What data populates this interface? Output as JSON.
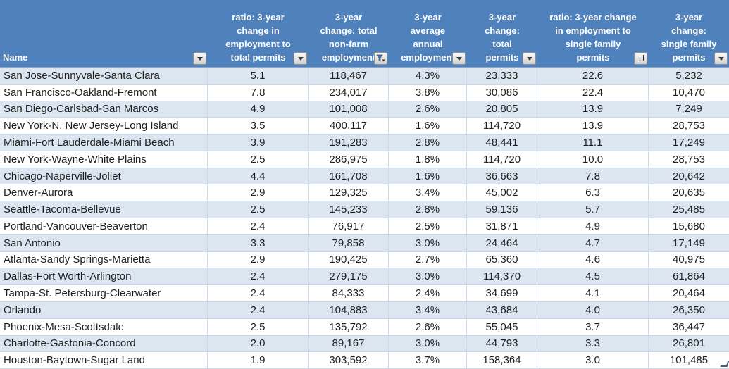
{
  "table": {
    "columns": [
      {
        "name": "name",
        "label": "Name",
        "lines": [
          "Name"
        ],
        "filter": "dropdown"
      },
      {
        "name": "ratio-employment-to-total-permits",
        "label": "ratio: 3-year change in employment to total permits",
        "lines": [
          "ratio: 3-year",
          "change in",
          "employment to",
          "total permits"
        ],
        "filter": "dropdown"
      },
      {
        "name": "change-total-nonfarm-employment",
        "label": "3-year change: total non-farm employment",
        "lines": [
          "3-year",
          "change: total",
          "non-farm",
          "employment"
        ],
        "filter": "filtered"
      },
      {
        "name": "average-annual-employment",
        "label": "3-year average annual employment",
        "lines": [
          "3-year",
          "average",
          "annual",
          "employment"
        ],
        "filter": "dropdown"
      },
      {
        "name": "change-total-permits",
        "label": "3-year change: total permits",
        "lines": [
          "3-year",
          "change:",
          "total",
          "permits"
        ],
        "filter": "dropdown"
      },
      {
        "name": "ratio-employment-to-single-family-permits",
        "label": "ratio: 3-year change in employment to single family permits",
        "lines": [
          "ratio: 3-year change",
          "in employment to",
          "single family",
          "permits"
        ],
        "filter": "sorted-desc"
      },
      {
        "name": "change-single-family-permits",
        "label": "3-year change: single family permits",
        "lines": [
          "3-year",
          "change:",
          "single family",
          "permits"
        ],
        "filter": "dropdown"
      }
    ],
    "rows": [
      [
        "San Jose-Sunnyvale-Santa Clara",
        "5.1",
        "118,467",
        "4.3%",
        "23,333",
        "22.6",
        "5,232"
      ],
      [
        "San Francisco-Oakland-Fremont",
        "7.8",
        "234,017",
        "3.8%",
        "30,086",
        "22.4",
        "10,470"
      ],
      [
        "San Diego-Carlsbad-San Marcos",
        "4.9",
        "101,008",
        "2.6%",
        "20,805",
        "13.9",
        "7,249"
      ],
      [
        "New York-N. New Jersey-Long Island",
        "3.5",
        "400,117",
        "1.6%",
        "114,720",
        "13.9",
        "28,753"
      ],
      [
        "Miami-Fort Lauderdale-Miami Beach",
        "3.9",
        "191,283",
        "2.8%",
        "48,441",
        "11.1",
        "17,249"
      ],
      [
        "New York-Wayne-White Plains",
        "2.5",
        "286,975",
        "1.8%",
        "114,720",
        "10.0",
        "28,753"
      ],
      [
        "Chicago-Naperville-Joliet",
        "4.4",
        "161,708",
        "1.6%",
        "36,663",
        "7.8",
        "20,642"
      ],
      [
        "Denver-Aurora",
        "2.9",
        "129,325",
        "3.4%",
        "45,002",
        "6.3",
        "20,635"
      ],
      [
        "Seattle-Tacoma-Bellevue",
        "2.5",
        "145,233",
        "2.8%",
        "59,136",
        "5.7",
        "25,485"
      ],
      [
        "Portland-Vancouver-Beaverton",
        "2.4",
        "76,917",
        "2.5%",
        "31,871",
        "4.9",
        "15,680"
      ],
      [
        "San Antonio",
        "3.3",
        "79,858",
        "3.0%",
        "24,464",
        "4.7",
        "17,149"
      ],
      [
        "Atlanta-Sandy Springs-Marietta",
        "2.9",
        "190,425",
        "2.7%",
        "65,360",
        "4.6",
        "40,975"
      ],
      [
        "Dallas-Fort Worth-Arlington",
        "2.4",
        "279,175",
        "3.0%",
        "114,370",
        "4.5",
        "61,864"
      ],
      [
        "Tampa-St. Petersburg-Clearwater",
        "2.4",
        "84,333",
        "2.4%",
        "34,699",
        "4.1",
        "20,464"
      ],
      [
        "Orlando",
        "2.4",
        "104,883",
        "3.4%",
        "43,684",
        "4.0",
        "26,350"
      ],
      [
        "Phoenix-Mesa-Scottsdale",
        "2.5",
        "135,792",
        "2.6%",
        "55,045",
        "3.7",
        "36,447"
      ],
      [
        "Charlotte-Gastonia-Concord",
        "2.0",
        "89,167",
        "3.0%",
        "44,793",
        "3.3",
        "26,801"
      ],
      [
        "Houston-Baytown-Sugar Land",
        "1.9",
        "303,592",
        "3.7%",
        "158,364",
        "3.0",
        "101,485"
      ]
    ]
  },
  "colors": {
    "header_bg": "#4f81bd",
    "header_text": "#ffffff",
    "row_alt_bg": "#dce6f1",
    "row_bg": "#ffffff",
    "gridline": "#ccd9ea",
    "data_text": "#1f1f1f"
  },
  "filter_states": {
    "sorted_column": "ratio: 3-year change in employment to single family permits",
    "sort_direction": "descending",
    "filtered_column": "3-year change: total non-farm employment"
  }
}
